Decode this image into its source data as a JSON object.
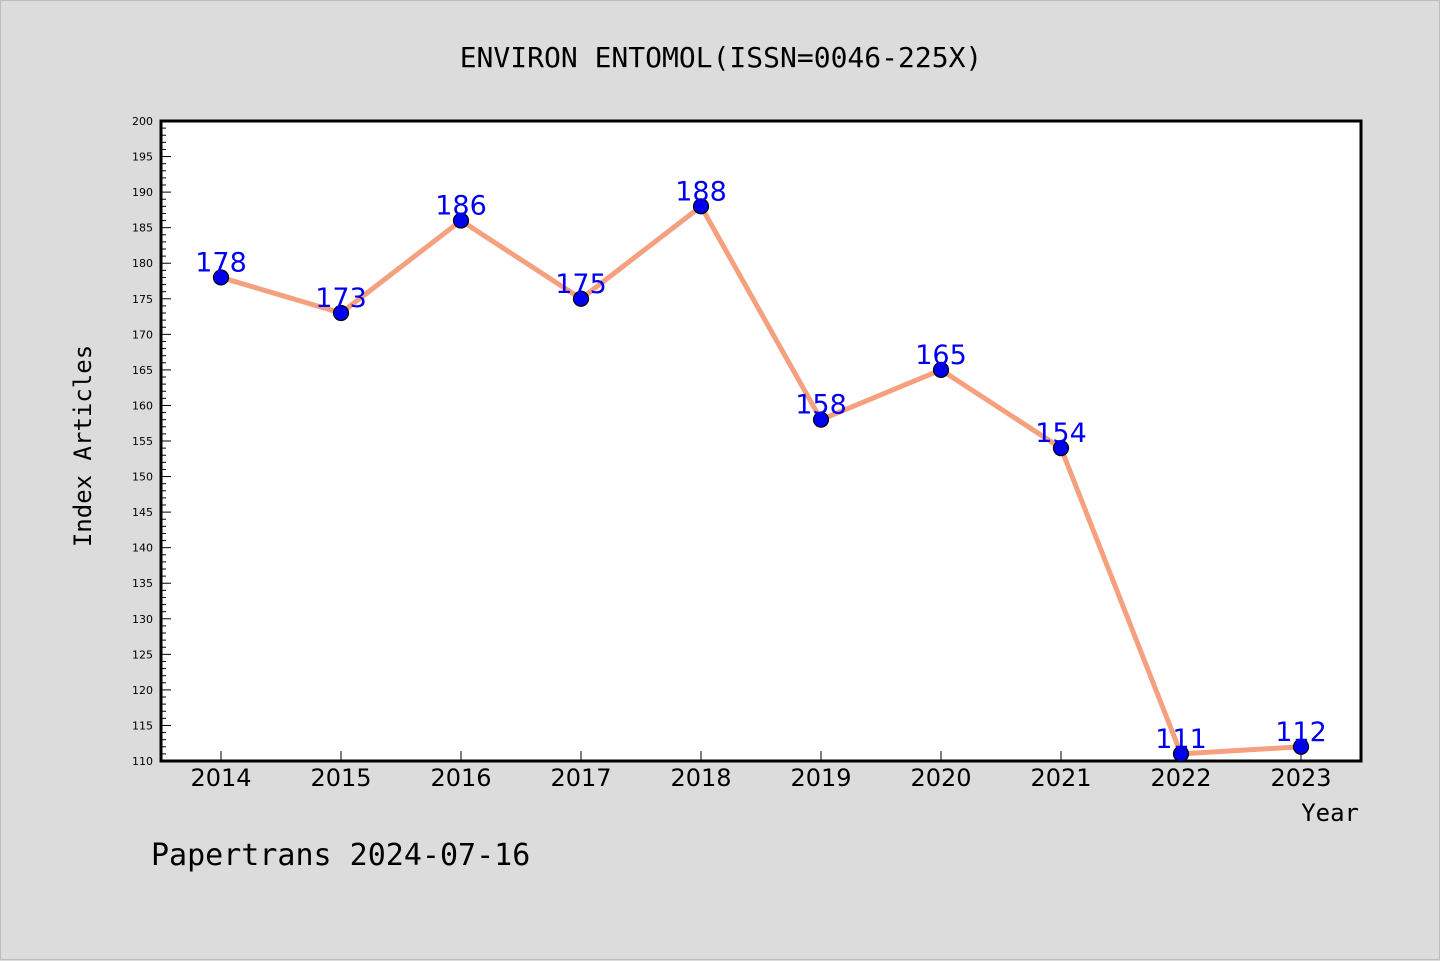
{
  "chart_data": {
    "type": "line",
    "title": "ENVIRON ENTOMOL(ISSN=0046-225X)",
    "xlabel": "Year",
    "ylabel": "Index Articles",
    "categories": [
      "2014",
      "2015",
      "2016",
      "2017",
      "2018",
      "2019",
      "2020",
      "2021",
      "2022",
      "2023"
    ],
    "series": [
      {
        "values": [
          178,
          173,
          186,
          175,
          188,
          158,
          165,
          154,
          111,
          112
        ]
      }
    ],
    "ylim": [
      110,
      200
    ],
    "y_ticks": [
      110,
      115,
      120,
      125,
      130,
      135,
      140,
      145,
      150,
      155,
      160,
      165,
      170,
      175,
      180,
      185,
      190,
      195,
      200
    ],
    "grid": false,
    "legend": "none",
    "data_labels": true,
    "colors": {
      "line": "#f5a07e",
      "marker": "#0000ee",
      "label": "#0000ee",
      "background": "#dcdcdc",
      "plot_bg": "#ffffff"
    }
  },
  "footer": {
    "text": "Papertrans 2024-07-16"
  }
}
